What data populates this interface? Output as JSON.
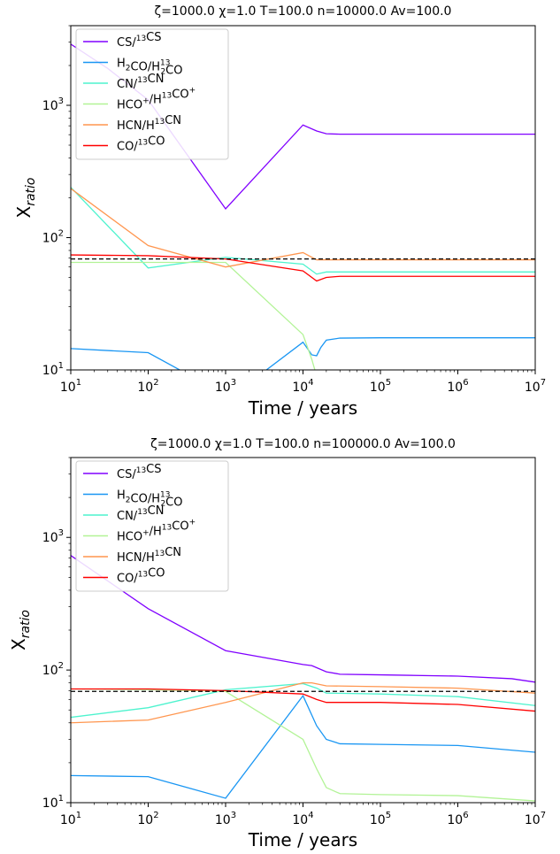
{
  "chart_data": [
    {
      "type": "line",
      "title": "ζ=1000.0 χ=1.0 T=100.0 n=10000.0  Av=100.0",
      "xlabel": "Time / years",
      "ylabel_main": "X",
      "ylabel_sub": "ratio",
      "xscale": "log",
      "yscale": "log",
      "xlim": [
        10,
        10000000
      ],
      "ylim": [
        10,
        4000
      ],
      "x_ticks": [
        {
          "value": 10,
          "base": "10",
          "exp": "1"
        },
        {
          "value": 100,
          "base": "10",
          "exp": "2"
        },
        {
          "value": 1000,
          "base": "10",
          "exp": "3"
        },
        {
          "value": 10000,
          "base": "10",
          "exp": "4"
        },
        {
          "value": 100000,
          "base": "10",
          "exp": "5"
        },
        {
          "value": 1000000,
          "base": "10",
          "exp": "6"
        },
        {
          "value": 10000000,
          "base": "10",
          "exp": "7"
        }
      ],
      "y_ticks": [
        {
          "value": 10,
          "base": "10",
          "exp": "1"
        },
        {
          "value": 100,
          "base": "10",
          "exp": "2"
        },
        {
          "value": 1000,
          "base": "10",
          "exp": "3"
        }
      ],
      "reference_line": {
        "y": 69,
        "style": "dashed",
        "color": "#000000"
      },
      "legend_position": "upper-left",
      "series": [
        {
          "legend": [
            {
              "t": "CS/"
            },
            {
              "t": "13",
              "sup": true
            },
            {
              "t": "CS"
            }
          ],
          "color": "#8000ff",
          "x": [
            10,
            30,
            100,
            1000,
            10000,
            15000,
            20000,
            30000,
            100000,
            1000000,
            10000000
          ],
          "y": [
            2900,
            1900,
            1100,
            165,
            710,
            640,
            610,
            605,
            605,
            605,
            605
          ]
        },
        {
          "legend": [
            {
              "t": "H"
            },
            {
              "t": "2",
              "sub": true
            },
            {
              "t": "CO/H"
            },
            {
              "t": "13",
              "supsub": "2"
            },
            {
              "t": "CO"
            }
          ],
          "color": "#1996f3",
          "x": [
            10,
            100,
            300,
            3000,
            10000,
            13000,
            15000,
            17000,
            20000,
            30000,
            100000,
            1000000,
            10000000
          ],
          "y": [
            14.5,
            13.5,
            9.5,
            9.5,
            16.2,
            13,
            12.8,
            14.8,
            16.8,
            17.4,
            17.5,
            17.5,
            17.5
          ]
        },
        {
          "legend": [
            {
              "t": "CN/"
            },
            {
              "t": "13",
              "sup": true
            },
            {
              "t": "CN"
            }
          ],
          "color": "#4df3ce",
          "x": [
            10,
            100,
            1000,
            10000,
            15000,
            20000,
            30000,
            100000,
            1000000,
            10000000
          ],
          "y": [
            240,
            59,
            71,
            63,
            53,
            55,
            55,
            55,
            55,
            55
          ]
        },
        {
          "legend": [
            {
              "t": "HCO"
            },
            {
              "t": "+",
              "sup": true
            },
            {
              "t": "/H"
            },
            {
              "t": "13",
              "sup": true
            },
            {
              "t": "CO"
            },
            {
              "t": "+",
              "sup": true
            }
          ],
          "color": "#b2f396",
          "x": [
            10,
            100,
            1000,
            10000,
            13000,
            15000,
            17000
          ],
          "y": [
            65,
            65,
            65,
            18.5,
            12,
            9,
            7
          ]
        },
        {
          "legend": [
            {
              "t": "HCN/H"
            },
            {
              "t": "13",
              "sup": true
            },
            {
              "t": "CN"
            }
          ],
          "color": "#ff964f",
          "x": [
            10,
            100,
            1000,
            10000,
            15000,
            100000,
            1000000,
            10000000
          ],
          "y": [
            235,
            87,
            60,
            77,
            68,
            68,
            68,
            68
          ]
        },
        {
          "legend": [
            {
              "t": "CO/"
            },
            {
              "t": "13",
              "sup": true
            },
            {
              "t": "CO"
            }
          ],
          "color": "#ff0000",
          "x": [
            10,
            100,
            1000,
            10000,
            15000,
            20000,
            30000,
            100000,
            1000000,
            10000000
          ],
          "y": [
            74,
            73,
            69,
            56,
            47,
            50,
            51,
            51,
            51,
            51
          ]
        }
      ]
    },
    {
      "type": "line",
      "title": "ζ=1000.0 χ=1.0 T=100.0 n=100000.0  Av=100.0",
      "xlabel": "Time / years",
      "ylabel_main": "X",
      "ylabel_sub": "ratio",
      "xscale": "log",
      "yscale": "log",
      "xlim": [
        10,
        10000000
      ],
      "ylim": [
        10,
        4000
      ],
      "x_ticks": [
        {
          "value": 10,
          "base": "10",
          "exp": "1"
        },
        {
          "value": 100,
          "base": "10",
          "exp": "2"
        },
        {
          "value": 1000,
          "base": "10",
          "exp": "3"
        },
        {
          "value": 10000,
          "base": "10",
          "exp": "4"
        },
        {
          "value": 100000,
          "base": "10",
          "exp": "5"
        },
        {
          "value": 1000000,
          "base": "10",
          "exp": "6"
        },
        {
          "value": 10000000,
          "base": "10",
          "exp": "7"
        }
      ],
      "y_ticks": [
        {
          "value": 10,
          "base": "10",
          "exp": "1"
        },
        {
          "value": 100,
          "base": "10",
          "exp": "2"
        },
        {
          "value": 1000,
          "base": "10",
          "exp": "3"
        }
      ],
      "reference_line": {
        "y": 69,
        "style": "dashed",
        "color": "#000000"
      },
      "legend_position": "upper-left",
      "series": [
        {
          "legend": [
            {
              "t": "CS/"
            },
            {
              "t": "13",
              "sup": true
            },
            {
              "t": "CS"
            }
          ],
          "color": "#8000ff",
          "x": [
            10,
            100,
            1000,
            10000,
            13000,
            20000,
            30000,
            100000,
            1000000,
            5000000,
            10000000
          ],
          "y": [
            730,
            290,
            140,
            110,
            108,
            97,
            93,
            92,
            90,
            86,
            81
          ]
        },
        {
          "legend": [
            {
              "t": "H"
            },
            {
              "t": "2",
              "sub": true
            },
            {
              "t": "CO/H"
            },
            {
              "t": "13",
              "supsub": "2"
            },
            {
              "t": "CO"
            }
          ],
          "color": "#1996f3",
          "x": [
            10,
            100,
            1000,
            10000,
            15000,
            20000,
            30000,
            100000,
            1000000,
            10000000
          ],
          "y": [
            16,
            15.7,
            10.8,
            64,
            38,
            30,
            27.8,
            27.5,
            27,
            24
          ]
        },
        {
          "legend": [
            {
              "t": "CN/"
            },
            {
              "t": "13",
              "sup": true
            },
            {
              "t": "CN"
            }
          ],
          "color": "#4df3ce",
          "x": [
            10,
            100,
            1000,
            10000,
            15000,
            20000,
            100000,
            1000000,
            10000000
          ],
          "y": [
            44,
            52,
            71,
            79,
            73,
            67,
            66,
            63,
            54
          ]
        },
        {
          "legend": [
            {
              "t": "HCO"
            },
            {
              "t": "+",
              "sup": true
            },
            {
              "t": "/H"
            },
            {
              "t": "13",
              "sup": true
            },
            {
              "t": "CO"
            },
            {
              "t": "+",
              "sup": true
            }
          ],
          "color": "#b2f396",
          "x": [
            10,
            100,
            1000,
            10000,
            15000,
            20000,
            30000,
            100000,
            1000000,
            10000000
          ],
          "y": [
            72,
            71,
            69,
            30,
            18,
            13,
            11.7,
            11.5,
            11.3,
            10.3
          ]
        },
        {
          "legend": [
            {
              "t": "HCN/H"
            },
            {
              "t": "13",
              "sup": true
            },
            {
              "t": "CN"
            }
          ],
          "color": "#ff964f",
          "x": [
            10,
            100,
            1000,
            10000,
            13000,
            20000,
            100000,
            1000000,
            10000000
          ],
          "y": [
            40,
            42,
            57,
            80,
            80,
            76,
            75,
            73,
            67
          ]
        },
        {
          "legend": [
            {
              "t": "CO/"
            },
            {
              "t": "13",
              "sup": true
            },
            {
              "t": "CO"
            }
          ],
          "color": "#ff0000",
          "x": [
            10,
            100,
            1000,
            10000,
            15000,
            20000,
            100000,
            1000000,
            10000000
          ],
          "y": [
            72,
            72,
            70,
            66,
            60,
            57,
            57,
            55,
            49
          ]
        }
      ]
    }
  ]
}
